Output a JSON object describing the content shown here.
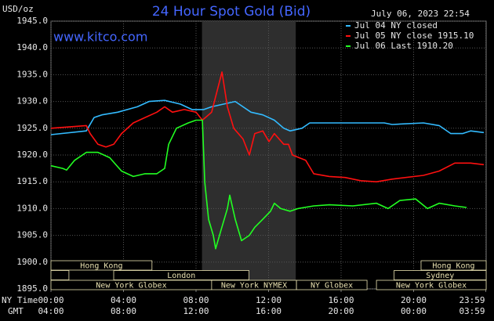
{
  "chart_data": {
    "type": "line",
    "title": "24 Hour Spot Gold (Bid)",
    "y_label": "USD/oz",
    "watermark": "www.kitco.com",
    "timestamp": "July 06, 2023 22:54",
    "x_label": "NY Time",
    "x2_label": "GMT",
    "background": "#000000",
    "grid": true,
    "grid_color": "#555555",
    "shaded_region": {
      "start": 8.33,
      "end": 13.5,
      "color": "#2e2e2e"
    },
    "xlim": [
      0,
      24
    ],
    "ylim": [
      1895,
      1945
    ],
    "xticks": [
      {
        "value": 0,
        "label": "00:00"
      },
      {
        "value": 4,
        "label": "04:00"
      },
      {
        "value": 8,
        "label": "08:00"
      },
      {
        "value": 12,
        "label": "12:00"
      },
      {
        "value": 16,
        "label": "16:00"
      },
      {
        "value": 20,
        "label": "20:00"
      },
      {
        "value": 23.98,
        "label": "23:59"
      }
    ],
    "x2ticks": [
      {
        "value": 0,
        "label": "04:00"
      },
      {
        "value": 4,
        "label": "08:00"
      },
      {
        "value": 8,
        "label": "12:00"
      },
      {
        "value": 12,
        "label": "16:00"
      },
      {
        "value": 16,
        "label": "20:00"
      },
      {
        "value": 20,
        "label": "00:00"
      },
      {
        "value": 23.98,
        "label": "03:59"
      }
    ],
    "yticks": [
      {
        "value": 1895,
        "label": "1895.0"
      },
      {
        "value": 1900,
        "label": "1900.0"
      },
      {
        "value": 1905,
        "label": "1905.0"
      },
      {
        "value": 1910,
        "label": "1910.0"
      },
      {
        "value": 1915,
        "label": "1915.0"
      },
      {
        "value": 1920,
        "label": "1920.0"
      },
      {
        "value": 1925,
        "label": "1925.0"
      },
      {
        "value": 1930,
        "label": "1930.0"
      },
      {
        "value": 1935,
        "label": "1935.0"
      },
      {
        "value": 1940,
        "label": "1940.0"
      },
      {
        "value": 1945,
        "label": "1945.0"
      }
    ],
    "series": [
      {
        "name": "Jul 04 NY closed",
        "color": "#33bbff",
        "x": [
          0,
          1.95,
          2.38,
          2.81,
          3.68,
          4.76,
          5.41,
          6.27,
          7.14,
          7.78,
          8.43,
          8.86,
          10.16,
          11.03,
          11.68,
          12.32,
          12.84,
          13.19,
          13.84,
          14.27,
          18.38,
          18.81,
          20.54,
          21.41,
          22.05,
          22.7,
          23.14,
          23.87
        ],
        "values": [
          1923.8,
          1924.5,
          1927,
          1927.5,
          1928,
          1929,
          1930,
          1930.2,
          1929.5,
          1928.5,
          1928.5,
          1929,
          1930,
          1928,
          1927.5,
          1926.5,
          1925,
          1924.5,
          1925,
          1926,
          1926,
          1925.7,
          1926,
          1925.5,
          1924,
          1924,
          1924.5,
          1924.2
        ]
      },
      {
        "name": "Jul 05 NY close 1915.10",
        "color": "#ff1010",
        "x": [
          0,
          1.95,
          2.16,
          2.59,
          3.03,
          3.46,
          3.89,
          4.54,
          5.19,
          5.84,
          6.27,
          6.7,
          7.35,
          8.0,
          8.35,
          8.86,
          9.43,
          9.73,
          10.08,
          10.59,
          10.94,
          11.24,
          11.68,
          12.02,
          12.32,
          12.84,
          13.1,
          13.32,
          14.05,
          14.49,
          15.35,
          16.22,
          17.08,
          17.95,
          18.81,
          20.54,
          21.41,
          22.27,
          23.14,
          23.87
        ],
        "values": [
          1925,
          1925.5,
          1924,
          1922,
          1921.5,
          1922,
          1924,
          1926,
          1927,
          1928,
          1929,
          1928,
          1928.5,
          1928,
          1926.5,
          1928,
          1935.5,
          1929,
          1925,
          1923,
          1920,
          1924,
          1924.5,
          1922.5,
          1924,
          1922,
          1922,
          1920,
          1919,
          1916.5,
          1916,
          1915.8,
          1915.2,
          1915,
          1915.5,
          1916.2,
          1917,
          1918.5,
          1918.5,
          1918.2
        ]
      },
      {
        "name": "Jul 06 Last 1910.20",
        "color": "#22ff22",
        "x": [
          0,
          0.65,
          0.86,
          1.3,
          1.95,
          2.59,
          3.24,
          3.89,
          4.54,
          5.19,
          5.84,
          6.27,
          6.49,
          6.92,
          7.57,
          8.0,
          8.35,
          8.48,
          8.69,
          8.95,
          9.08,
          9.38,
          9.73,
          9.86,
          10.16,
          10.51,
          10.94,
          11.24,
          11.68,
          12.11,
          12.32,
          12.67,
          13.19,
          13.62,
          14.49,
          15.35,
          16.65,
          17.95,
          18.59,
          19.24,
          20.11,
          20.76,
          21.41,
          22.27,
          22.92
        ],
        "values": [
          1918,
          1917.5,
          1917.2,
          1919,
          1920.5,
          1920.5,
          1919.5,
          1917,
          1916,
          1916.5,
          1916.5,
          1917.5,
          1922,
          1925,
          1926,
          1926.5,
          1926.5,
          1915,
          1908,
          1905,
          1902.5,
          1906,
          1910,
          1912.5,
          1908,
          1904,
          1905,
          1906.5,
          1908,
          1909.5,
          1911,
          1910,
          1909.5,
          1910,
          1910.5,
          1910.7,
          1910.5,
          1911,
          1910,
          1911.5,
          1911.8,
          1910,
          1911,
          1910.5,
          1910.2
        ]
      }
    ],
    "sessions": [
      {
        "label": "Hong Kong",
        "start": 0,
        "end": 5.57,
        "row": 0
      },
      {
        "label": null,
        "start": 0,
        "end": 0.99,
        "row": 1
      },
      {
        "label": "London",
        "start": 3.46,
        "end": 10.92,
        "row": 1
      },
      {
        "label": "New York Globex",
        "start": 0,
        "end": 8.86,
        "row": 2
      },
      {
        "label": "New York NYMEX",
        "start": 8.86,
        "end": 13.54,
        "row": 2
      },
      {
        "label": "NY Globex",
        "start": 13.54,
        "end": 17.43,
        "row": 2
      },
      {
        "label": "Hong Kong",
        "start": 20.41,
        "end": 24,
        "row": 0
      },
      {
        "label": "Sydney",
        "start": 18.92,
        "end": 24,
        "row": 1
      },
      {
        "label": "New York Globex",
        "start": 17.95,
        "end": 24,
        "row": 2
      }
    ]
  }
}
